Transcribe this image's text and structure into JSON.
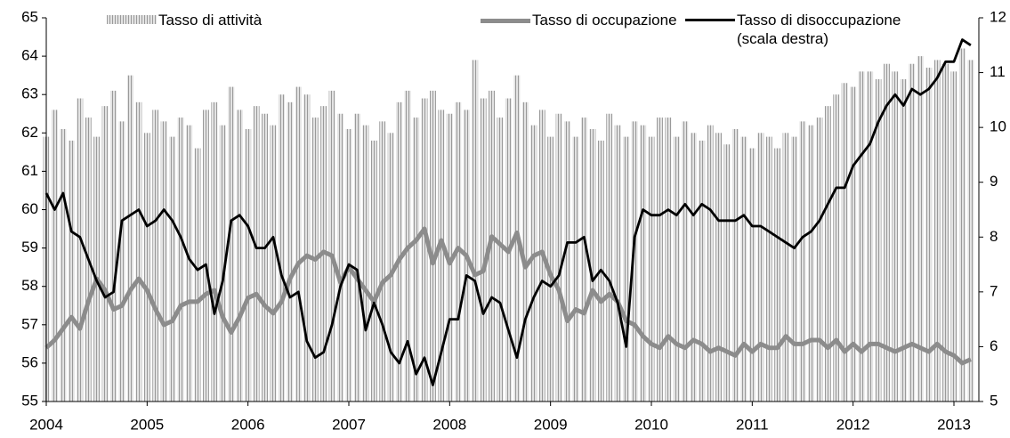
{
  "chart_data": {
    "type": "bar",
    "categories": [
      "2004",
      null,
      null,
      null,
      null,
      null,
      null,
      null,
      null,
      null,
      null,
      null,
      "2005",
      null,
      null,
      null,
      null,
      null,
      null,
      null,
      null,
      null,
      null,
      null,
      "2006",
      null,
      null,
      null,
      null,
      null,
      null,
      null,
      null,
      null,
      null,
      null,
      "2007",
      null,
      null,
      null,
      null,
      null,
      null,
      null,
      null,
      null,
      null,
      null,
      "2008",
      null,
      null,
      null,
      null,
      null,
      null,
      null,
      null,
      null,
      null,
      null,
      "2009",
      null,
      null,
      null,
      null,
      null,
      null,
      null,
      null,
      null,
      null,
      null,
      "2010",
      null,
      null,
      null,
      null,
      null,
      null,
      null,
      null,
      null,
      null,
      null,
      "2011",
      null,
      null,
      null,
      null,
      null,
      null,
      null,
      null,
      null,
      null,
      null,
      "2012",
      null,
      null,
      null,
      null,
      null,
      null,
      null,
      null,
      null,
      null,
      null,
      "2013",
      null,
      null
    ],
    "series": [
      {
        "name": "Tasso di attività",
        "type": "bar",
        "color": "#b3b3b3",
        "values": [
          61.9,
          62.6,
          62.1,
          61.8,
          62.9,
          62.4,
          61.9,
          62.7,
          63.1,
          62.3,
          63.5,
          62.8,
          62.0,
          62.6,
          62.3,
          61.9,
          62.4,
          62.2,
          61.6,
          62.6,
          62.8,
          62.2,
          63.2,
          62.6,
          62.1,
          62.7,
          62.5,
          62.2,
          63.0,
          62.8,
          63.2,
          63.0,
          62.4,
          62.7,
          63.1,
          62.5,
          62.1,
          62.5,
          62.2,
          61.8,
          62.3,
          62.0,
          62.8,
          63.1,
          62.4,
          62.9,
          63.1,
          62.6,
          62.5,
          62.8,
          62.6,
          63.9,
          62.9,
          63.1,
          62.4,
          62.9,
          63.5,
          62.8,
          62.2,
          62.6,
          61.9,
          62.5,
          62.3,
          61.9,
          62.4,
          62.1,
          61.8,
          62.5,
          62.2,
          61.9,
          62.3,
          62.2,
          61.9,
          62.4,
          62.4,
          61.9,
          62.3,
          62.0,
          61.8,
          62.2,
          62.0,
          61.7,
          62.1,
          61.9,
          61.6,
          62.0,
          61.9,
          61.6,
          62.0,
          61.9,
          62.3,
          62.2,
          62.4,
          62.7,
          63.0,
          63.3,
          63.2,
          63.6,
          63.6,
          63.4,
          63.8,
          63.6,
          63.4,
          63.8,
          64.0,
          63.7,
          63.9,
          63.8,
          63.6,
          64.2,
          63.9
        ]
      },
      {
        "name": "Tasso di occupazione",
        "type": "line",
        "color": "#8c8c8c",
        "values": [
          56.4,
          56.6,
          56.9,
          57.2,
          56.9,
          57.6,
          58.2,
          57.9,
          57.4,
          57.5,
          57.9,
          58.2,
          57.9,
          57.4,
          57.0,
          57.1,
          57.5,
          57.6,
          57.6,
          57.8,
          57.9,
          57.2,
          56.8,
          57.2,
          57.7,
          57.8,
          57.5,
          57.3,
          57.6,
          58.2,
          58.6,
          58.8,
          58.7,
          58.9,
          58.8,
          58.1,
          58.5,
          58.2,
          57.9,
          57.6,
          58.1,
          58.3,
          58.7,
          59.0,
          59.2,
          59.5,
          58.6,
          59.2,
          58.6,
          59.0,
          58.8,
          58.3,
          58.4,
          59.3,
          59.1,
          58.9,
          59.4,
          58.5,
          58.8,
          58.9,
          58.3,
          57.9,
          57.1,
          57.4,
          57.3,
          57.9,
          57.6,
          57.8,
          57.6,
          57.1,
          57.0,
          56.7,
          56.5,
          56.4,
          56.7,
          56.5,
          56.4,
          56.6,
          56.5,
          56.3,
          56.4,
          56.3,
          56.2,
          56.5,
          56.3,
          56.5,
          56.4,
          56.4,
          56.7,
          56.5,
          56.5,
          56.6,
          56.6,
          56.4,
          56.6,
          56.3,
          56.5,
          56.3,
          56.5,
          56.5,
          56.4,
          56.3,
          56.4,
          56.5,
          56.4,
          56.3,
          56.5,
          56.3,
          56.2,
          56.0,
          56.1
        ]
      },
      {
        "name": "Tasso di disoccupazione (scala destra)",
        "type": "line",
        "axis": "y2",
        "color": "#000000",
        "values": [
          8.8,
          8.5,
          8.8,
          8.1,
          8.0,
          7.6,
          7.2,
          6.9,
          7.0,
          8.3,
          8.4,
          8.5,
          8.2,
          8.3,
          8.5,
          8.3,
          8.0,
          7.6,
          7.4,
          7.5,
          6.6,
          7.2,
          8.3,
          8.4,
          8.2,
          7.8,
          7.8,
          8.0,
          7.3,
          6.9,
          7.0,
          6.1,
          5.8,
          5.9,
          6.4,
          7.1,
          7.5,
          7.4,
          6.3,
          6.8,
          6.4,
          5.9,
          5.7,
          6.1,
          5.5,
          5.8,
          5.3,
          5.9,
          6.5,
          6.5,
          7.3,
          7.2,
          6.6,
          6.9,
          6.8,
          6.3,
          5.8,
          6.5,
          6.9,
          7.2,
          7.1,
          7.3,
          7.9,
          7.9,
          8.0,
          7.2,
          7.4,
          7.2,
          6.8,
          6.0,
          8.0,
          8.5,
          8.4,
          8.4,
          8.5,
          8.4,
          8.6,
          8.4,
          8.6,
          8.5,
          8.3,
          8.3,
          8.3,
          8.4,
          8.2,
          8.2,
          8.1,
          8.0,
          7.9,
          7.8,
          8.0,
          8.1,
          8.3,
          8.6,
          8.9,
          8.9,
          9.3,
          9.5,
          9.7,
          10.1,
          10.4,
          10.6,
          10.4,
          10.7,
          10.6,
          10.7,
          10.9,
          11.2,
          11.2,
          11.6,
          11.5
        ]
      }
    ],
    "ylim": [
      55,
      65
    ],
    "yticks": [
      55,
      56,
      57,
      58,
      59,
      60,
      61,
      62,
      63,
      64,
      65
    ],
    "y2lim": [
      5,
      12
    ],
    "y2ticks": [
      5,
      6,
      7,
      8,
      9,
      10,
      11,
      12
    ]
  }
}
